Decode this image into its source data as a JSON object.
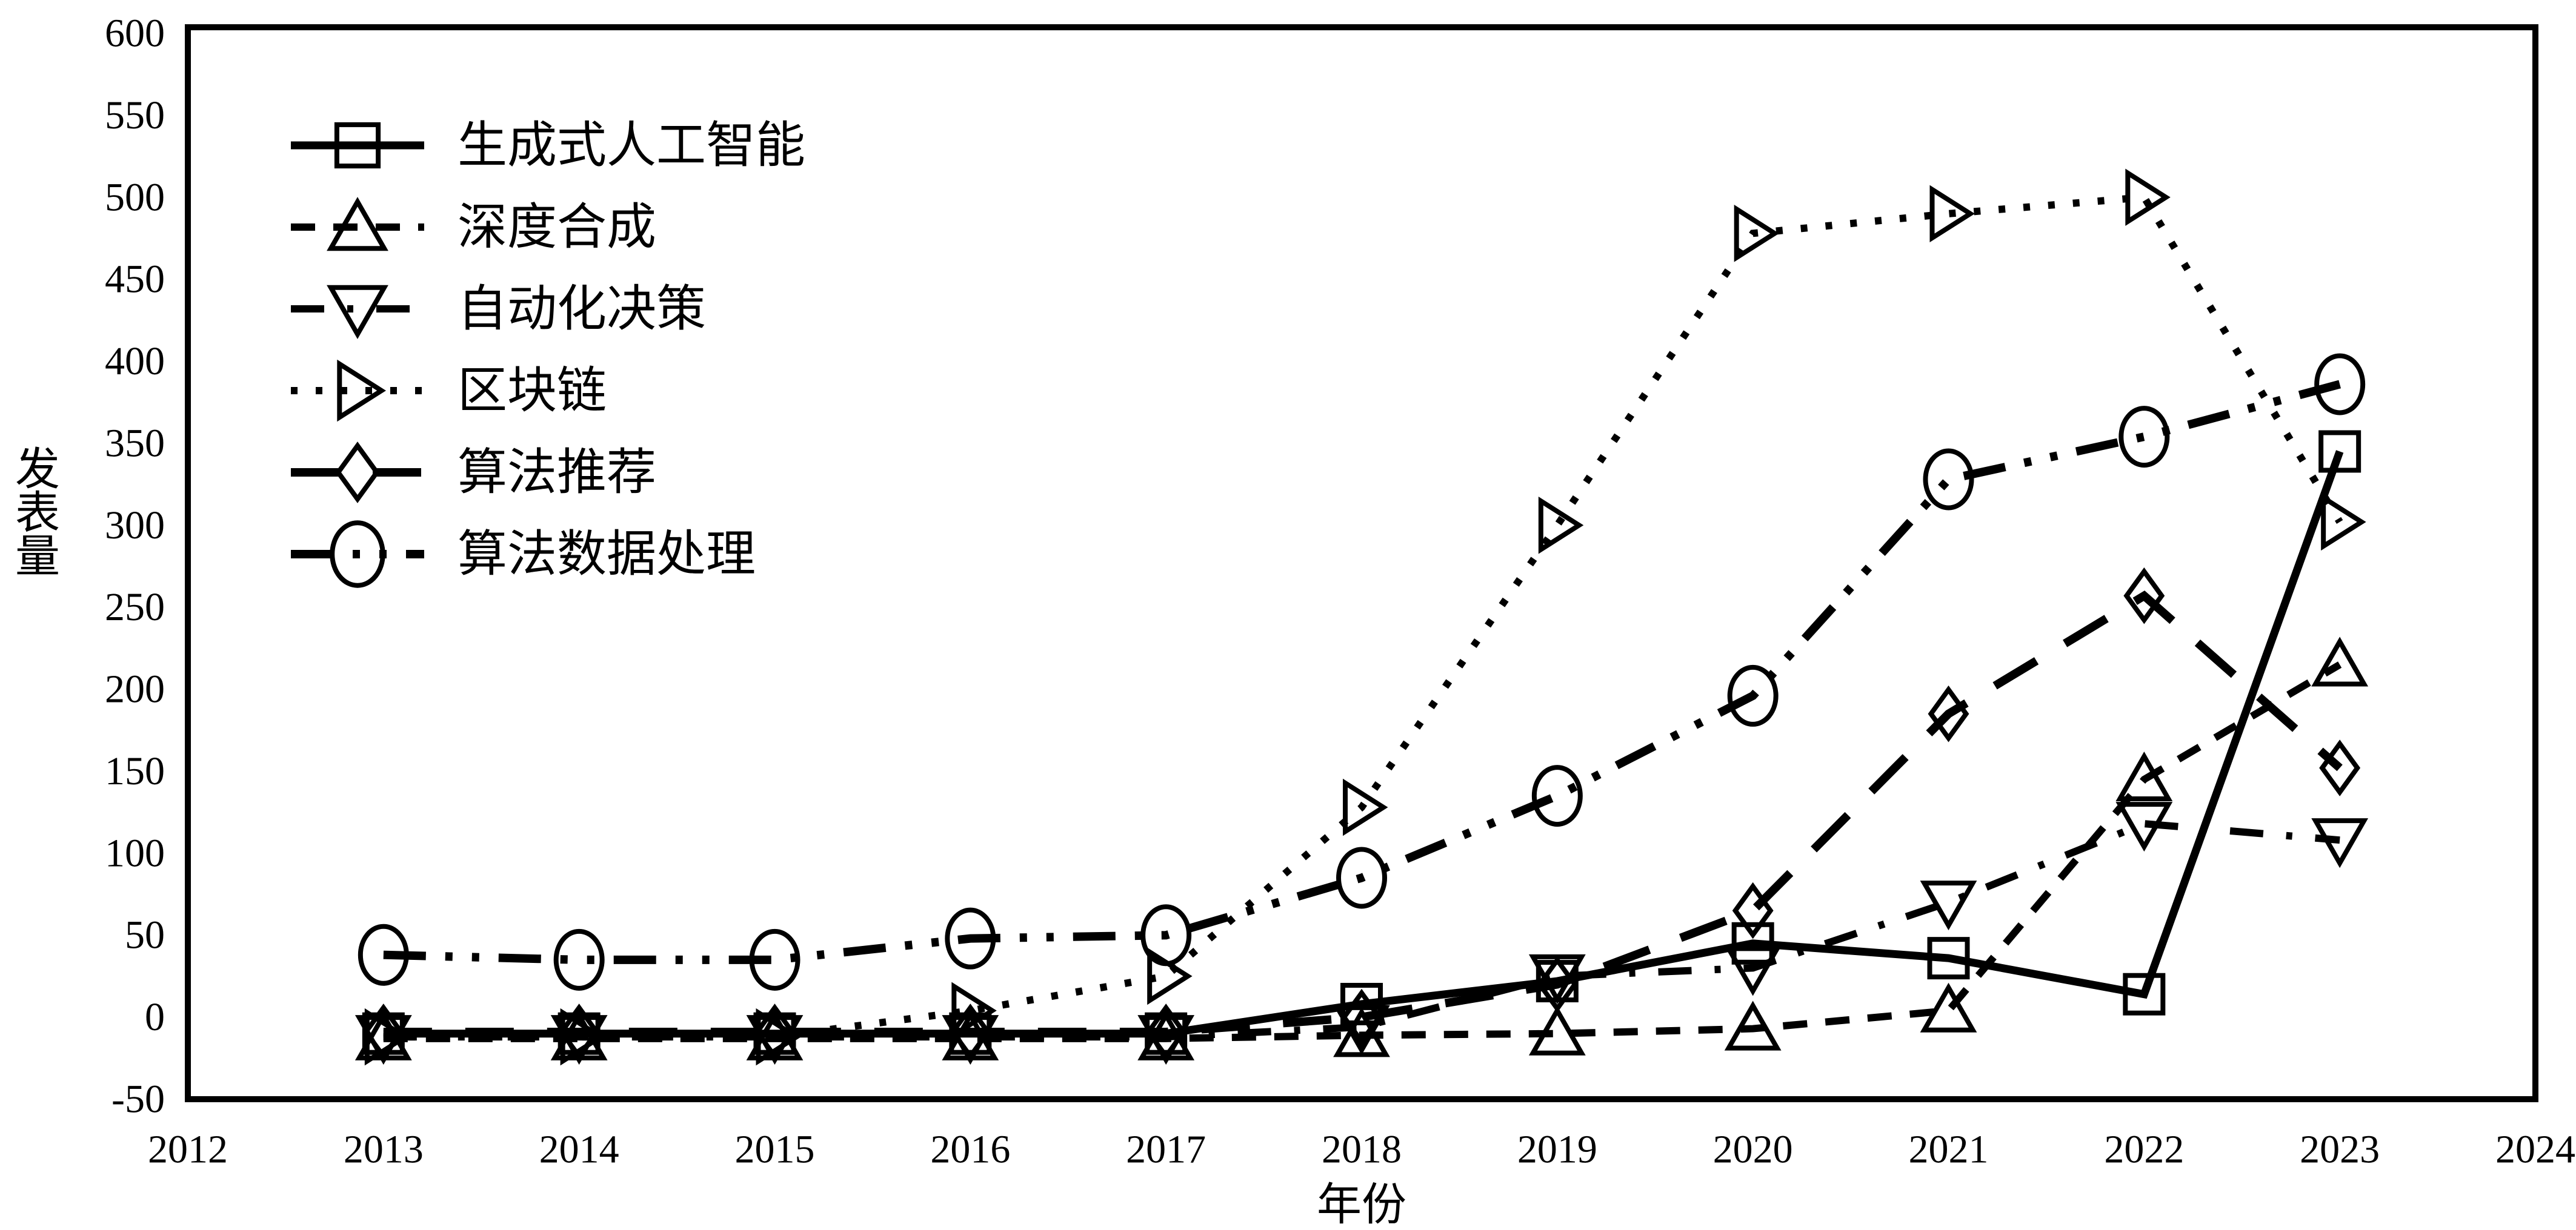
{
  "figure": {
    "background_color": "#ffffff",
    "ink_color": "#000000"
  },
  "chart_data": {
    "type": "line",
    "title": "",
    "xlabel": "年份",
    "ylabel": "发表量",
    "xlim": [
      2012,
      2024
    ],
    "ylim": [
      -50,
      600
    ],
    "grid": false,
    "legend_position": "top-left-inside",
    "xticks": [
      2012,
      2013,
      2014,
      2015,
      2016,
      2017,
      2018,
      2019,
      2020,
      2021,
      2022,
      2023,
      2024
    ],
    "yticks": [
      600,
      550,
      500,
      450,
      400,
      350,
      300,
      250,
      200,
      150,
      100,
      50,
      0,
      -50
    ],
    "x": [
      2013,
      2014,
      2015,
      2016,
      2017,
      2018,
      2019,
      2020,
      2021,
      2022,
      2023
    ],
    "series": [
      {
        "id": "generative-ai",
        "name": "生成式人工智能",
        "marker": "square",
        "line": "solid",
        "values": [
          -10,
          -10,
          -10,
          -10,
          -10,
          8,
          22,
          45,
          36,
          14,
          345
        ]
      },
      {
        "id": "deep-synthesis",
        "name": "深度合成",
        "marker": "triangle-up",
        "line": "dashed",
        "values": [
          -13,
          -13,
          -13,
          -13,
          -13,
          -11,
          -10,
          -7,
          4,
          145,
          215
        ]
      },
      {
        "id": "automated-decision-making",
        "name": "自动化决策",
        "marker": "triangle-down",
        "line": "dash-dot",
        "values": [
          -12,
          -12,
          -12,
          -12,
          -12,
          -6,
          25,
          30,
          70,
          118,
          108
        ]
      },
      {
        "id": "blockchain",
        "name": "区块链",
        "marker": "triangle-right",
        "line": "dotted",
        "values": [
          -12,
          -12,
          -12,
          4,
          25,
          128,
          300,
          478,
          490,
          500,
          302
        ]
      },
      {
        "id": "algorithm-recommendation",
        "name": "算法推荐",
        "marker": "diamond",
        "line": "long-dash",
        "values": [
          -9,
          -9,
          -9,
          -9,
          -9,
          0,
          20,
          65,
          185,
          257,
          152
        ]
      },
      {
        "id": "algorithm-data-processing",
        "name": "算法数据处理",
        "marker": "circle",
        "line": "dash-dot-dot",
        "values": [
          38,
          35,
          35,
          48,
          50,
          85,
          135,
          196,
          328,
          354,
          386
        ]
      }
    ]
  }
}
